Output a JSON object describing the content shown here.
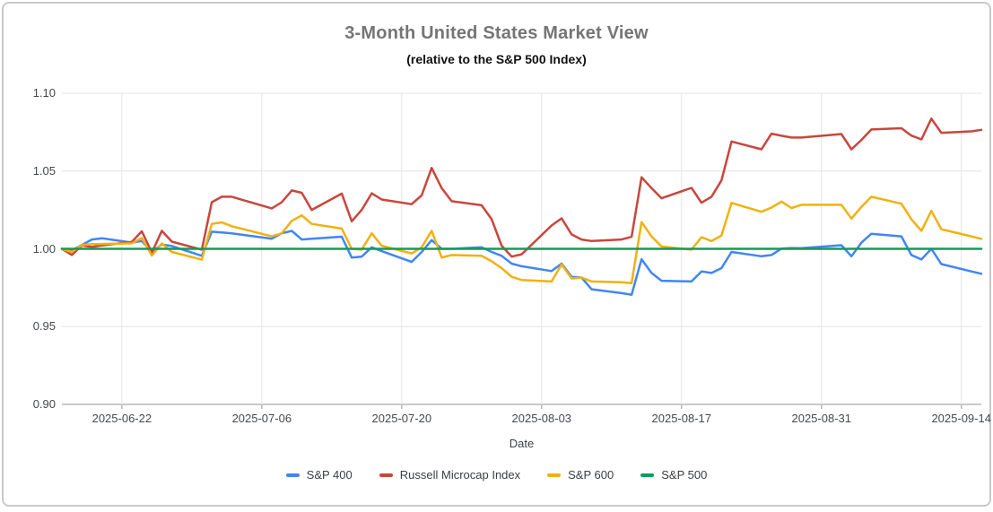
{
  "frame": {
    "border_color": "#c9c9c9",
    "background": "#ffffff"
  },
  "chart_data": {
    "type": "line",
    "title": "3-Month United States Market View",
    "subtitle": "(relative to the S&P 500 Index)",
    "xlabel": "Date",
    "ylabel": "",
    "ylim": [
      0.9,
      1.1
    ],
    "grid": true,
    "legend_position": "bottom",
    "baseline_value": 1.0,
    "y_ticks": [
      {
        "label": "1.10",
        "value": 1.1
      },
      {
        "label": "1.05",
        "value": 1.05
      },
      {
        "label": "1.00",
        "value": 1.0
      },
      {
        "label": "0.95",
        "value": 0.95
      },
      {
        "label": "0.90",
        "value": 0.9
      }
    ],
    "x_ticks": [
      {
        "label": "2025-06-22",
        "date": "2025-06-22"
      },
      {
        "label": "2025-07-06",
        "date": "2025-07-06"
      },
      {
        "label": "2025-07-20",
        "date": "2025-07-20"
      },
      {
        "label": "2025-08-03",
        "date": "2025-08-03"
      },
      {
        "label": "2025-08-17",
        "date": "2025-08-17"
      },
      {
        "label": "2025-08-31",
        "date": "2025-08-31"
      },
      {
        "label": "2025-09-14",
        "date": "2025-09-14"
      }
    ],
    "x": [
      "2025-06-16",
      "2025-06-17",
      "2025-06-18",
      "2025-06-19",
      "2025-06-20",
      "2025-06-23",
      "2025-06-24",
      "2025-06-25",
      "2025-06-26",
      "2025-06-27",
      "2025-06-30",
      "2025-07-01",
      "2025-07-02",
      "2025-07-03",
      "2025-07-07",
      "2025-07-08",
      "2025-07-09",
      "2025-07-10",
      "2025-07-11",
      "2025-07-14",
      "2025-07-15",
      "2025-07-16",
      "2025-07-17",
      "2025-07-18",
      "2025-07-21",
      "2025-07-22",
      "2025-07-23",
      "2025-07-24",
      "2025-07-25",
      "2025-07-28",
      "2025-07-29",
      "2025-07-30",
      "2025-07-31",
      "2025-08-01",
      "2025-08-04",
      "2025-08-05",
      "2025-08-06",
      "2025-08-07",
      "2025-08-08",
      "2025-08-11",
      "2025-08-12",
      "2025-08-13",
      "2025-08-14",
      "2025-08-15",
      "2025-08-18",
      "2025-08-19",
      "2025-08-20",
      "2025-08-21",
      "2025-08-22",
      "2025-08-25",
      "2025-08-26",
      "2025-08-27",
      "2025-08-28",
      "2025-08-29",
      "2025-09-02",
      "2025-09-03",
      "2025-09-04",
      "2025-09-05",
      "2025-09-08",
      "2025-09-09",
      "2025-09-10",
      "2025-09-11",
      "2025-09-12",
      "2025-09-15",
      "2025-09-16"
    ],
    "series": [
      {
        "name": "S&P 400",
        "color": "#4285F4",
        "values": [
          1.0,
          0.999,
          1.0025,
          1.006,
          1.0068,
          1.004,
          1.005,
          0.998,
          1.0028,
          1.0018,
          0.9955,
          1.011,
          1.0105,
          1.01,
          1.0065,
          1.01,
          1.0115,
          1.006,
          1.0065,
          1.0078,
          0.9944,
          0.995,
          1.001,
          0.9985,
          0.9916,
          0.998,
          1.0056,
          1.0,
          1.0,
          1.001,
          0.998,
          0.9955,
          0.9905,
          0.9888,
          0.9857,
          0.9905,
          0.982,
          0.9815,
          0.974,
          0.9715,
          0.9705,
          0.9933,
          0.9845,
          0.9795,
          0.979,
          0.9855,
          0.9845,
          0.9876,
          0.998,
          0.9952,
          0.996,
          1.0002,
          1.0005,
          1.0004,
          1.0023,
          0.9952,
          1.004,
          1.0097,
          1.008,
          0.996,
          0.9932,
          1.0,
          0.9902,
          0.9855,
          0.984
        ]
      },
      {
        "name": "Russell Microcap Index",
        "color": "#C9463D",
        "values": [
          1.0,
          0.9961,
          1.0022,
          1.0012,
          1.0022,
          1.0045,
          1.0113,
          0.9975,
          1.0116,
          1.0046,
          0.9995,
          1.03,
          1.0335,
          1.0335,
          1.026,
          1.03,
          1.0375,
          1.036,
          1.025,
          1.0355,
          1.0177,
          1.025,
          1.0357,
          1.0317,
          1.0287,
          1.0344,
          1.052,
          1.039,
          1.0306,
          1.028,
          1.019,
          1.002,
          0.995,
          0.9965,
          1.015,
          1.0196,
          1.0093,
          1.006,
          1.005,
          1.006,
          1.0077,
          1.046,
          1.039,
          1.0325,
          1.0392,
          1.0296,
          1.0335,
          1.044,
          1.069,
          1.064,
          1.074,
          1.0727,
          1.0715,
          1.0715,
          1.0738,
          1.064,
          1.07,
          1.0767,
          1.0775,
          1.0728,
          1.0703,
          1.0837,
          1.0746,
          1.0755,
          1.0765
        ]
      },
      {
        "name": "S&P 600",
        "color": "#EFB211",
        "values": [
          1.0,
          0.998,
          1.0025,
          1.003,
          1.0031,
          1.0035,
          1.007,
          0.9957,
          1.0035,
          0.998,
          0.993,
          1.016,
          1.017,
          1.0145,
          1.008,
          1.01,
          1.018,
          1.0215,
          1.016,
          1.013,
          1.0,
          0.9995,
          1.01,
          1.002,
          0.997,
          1.001,
          1.0116,
          0.9944,
          0.996,
          0.9955,
          0.992,
          0.9876,
          0.982,
          0.98,
          0.979,
          0.99,
          0.981,
          0.9815,
          0.979,
          0.9785,
          0.978,
          1.0172,
          1.008,
          1.0015,
          0.9995,
          1.0075,
          1.005,
          1.0086,
          1.0295,
          1.0238,
          1.0265,
          1.0304,
          1.0262,
          1.0283,
          1.0283,
          1.0194,
          1.027,
          1.0335,
          1.029,
          1.019,
          1.0116,
          1.0244,
          1.0126,
          1.008,
          1.0064
        ]
      },
      {
        "name": "S&P 500",
        "color": "#129C58",
        "values": [
          1.0,
          1.0,
          1.0,
          1.0,
          1.0,
          1.0,
          1.0,
          1.0,
          1.0,
          1.0,
          1.0,
          1.0,
          1.0,
          1.0,
          1.0,
          1.0,
          1.0,
          1.0,
          1.0,
          1.0,
          1.0,
          1.0,
          1.0,
          1.0,
          1.0,
          1.0,
          1.0,
          1.0,
          1.0,
          1.0,
          1.0,
          1.0,
          1.0,
          1.0,
          1.0,
          1.0,
          1.0,
          1.0,
          1.0,
          1.0,
          1.0,
          1.0,
          1.0,
          1.0,
          1.0,
          1.0,
          1.0,
          1.0,
          1.0,
          1.0,
          1.0,
          1.0,
          1.0,
          1.0,
          1.0,
          1.0,
          1.0,
          1.0,
          1.0,
          1.0,
          1.0,
          1.0,
          1.0,
          1.0,
          1.0
        ]
      }
    ],
    "gridline_color": "#e4e4e4",
    "baseline_color": "#b7b7b7"
  }
}
